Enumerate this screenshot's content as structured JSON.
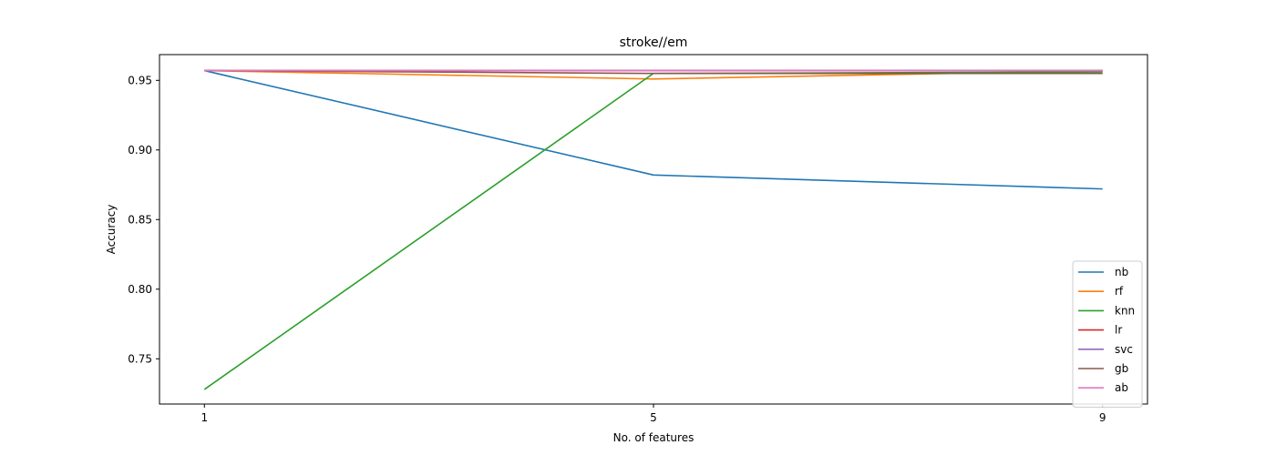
{
  "chart_data": {
    "type": "line",
    "title": "stroke//em",
    "xlabel": "No. of features",
    "ylabel": "Accuracy",
    "x": [
      1,
      5,
      9
    ],
    "x_ticks": [
      "1",
      "5",
      "9"
    ],
    "y_ticks": [
      "0.75",
      "0.80",
      "0.85",
      "0.90",
      "0.95"
    ],
    "xlim": [
      0.6,
      9.4
    ],
    "ylim": [
      0.7175,
      0.9685
    ],
    "grid": false,
    "legend_position": "lower-right",
    "series": [
      {
        "name": "nb",
        "color": "#1f77b4",
        "values": [
          0.957,
          0.882,
          0.872
        ]
      },
      {
        "name": "rf",
        "color": "#ff7f0e",
        "values": [
          0.957,
          0.951,
          0.957
        ]
      },
      {
        "name": "knn",
        "color": "#2ca02c",
        "values": [
          0.728,
          0.955,
          0.956
        ]
      },
      {
        "name": "lr",
        "color": "#d62728",
        "values": [
          0.957,
          0.957,
          0.957
        ]
      },
      {
        "name": "svc",
        "color": "#9467bd",
        "values": [
          0.957,
          0.957,
          0.957
        ]
      },
      {
        "name": "gb",
        "color": "#8c564b",
        "values": [
          0.957,
          0.955,
          0.955
        ]
      },
      {
        "name": "ab",
        "color": "#e377c2",
        "values": [
          0.957,
          0.957,
          0.957
        ]
      }
    ]
  }
}
